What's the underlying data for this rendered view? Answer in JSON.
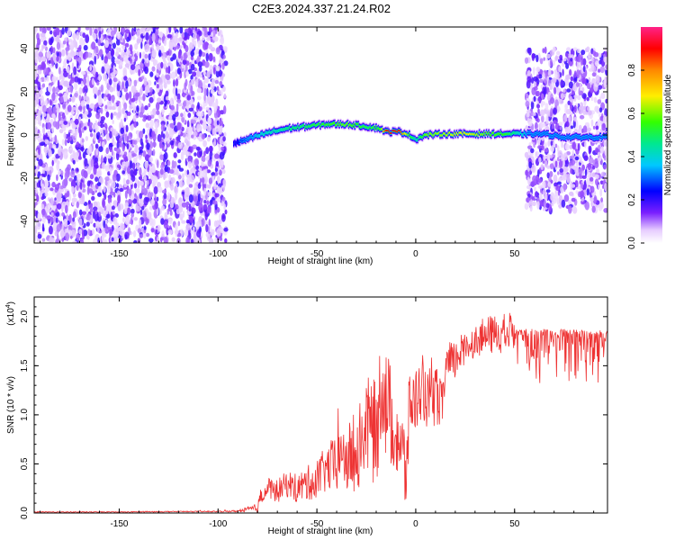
{
  "title": "C2E3.2024.337.21.24.R02",
  "chart_data": [
    {
      "type": "heatmap",
      "xlabel": "Height of straight line (km)",
      "ylabel": "Frequency (Hz)",
      "xlim": [
        -193,
        97
      ],
      "ylim": [
        -50,
        50
      ],
      "xticks": [
        -150,
        -100,
        -50,
        0,
        50
      ],
      "yticks": [
        -40,
        -20,
        0,
        20,
        40
      ],
      "colorbar": {
        "label": "Normalized spectral amplitude",
        "range": [
          0,
          1
        ],
        "ticks": [
          0.0,
          0.2,
          0.4,
          0.6,
          0.8
        ],
        "tick_labels": [
          "0.0",
          "0.2",
          "0.4",
          "0.6",
          "0.8"
        ]
      },
      "noise_regions": [
        {
          "x": [
            -193,
            -96
          ],
          "y": [
            -50,
            50
          ]
        },
        {
          "x": [
            56,
            97
          ],
          "y": [
            -35,
            40
          ]
        }
      ],
      "carrier_line": {
        "x": [
          -92,
          -85,
          -75,
          -65,
          -55,
          -45,
          -35,
          -25,
          -18,
          -15,
          -8,
          -4,
          0,
          5,
          15,
          25,
          35,
          45,
          57,
          65,
          75,
          85,
          97
        ],
        "y": [
          -4,
          -2,
          1,
          3,
          4,
          5,
          5,
          4,
          3,
          1.5,
          1.5,
          0.5,
          -2,
          0,
          0.5,
          0.5,
          0.5,
          0.5,
          0.5,
          0.5,
          -1,
          -1,
          -1
        ],
        "peak_amplitude": [
          0.2,
          0.3,
          0.4,
          0.45,
          0.5,
          0.55,
          0.6,
          0.5,
          0.55,
          0.9,
          0.9,
          0.6,
          0.4,
          0.6,
          0.65,
          0.7,
          0.6,
          0.55,
          0.3,
          0.3,
          0.3,
          0.3,
          0.3
        ]
      }
    },
    {
      "type": "line",
      "xlabel": "Height of straight line (km)",
      "ylabel": "SNR (10 * v/v)",
      "scale_label": "(x10",
      "scale_exponent": "4",
      "xlim": [
        -193,
        97
      ],
      "ylim": [
        0,
        2.2
      ],
      "xticks": [
        -150,
        -100,
        -50,
        0,
        50
      ],
      "yticks": [
        0.0,
        0.5,
        1.0,
        1.5,
        2.0
      ],
      "ytick_labels": [
        "0.0",
        "0.5",
        "1.0",
        "1.5",
        "2.0"
      ],
      "color": "#ee3333",
      "series": [
        {
          "x": [
            -193,
            -170,
            -150,
            -120,
            -100,
            -90,
            -80,
            -78,
            -75,
            -70,
            -65,
            -60,
            -55,
            -50,
            -45,
            -40,
            -35,
            -30,
            -25,
            -20,
            -17,
            -15,
            -13,
            -10,
            -7,
            -5,
            -3,
            0,
            3,
            5,
            8,
            10,
            13,
            15,
            20,
            25,
            30,
            35,
            40,
            50,
            55,
            60,
            70,
            80,
            90,
            97
          ],
          "y": [
            0.01,
            0.01,
            0.01,
            0.015,
            0.015,
            0.02,
            0.05,
            0.2,
            0.25,
            0.22,
            0.3,
            0.25,
            0.3,
            0.35,
            0.45,
            0.5,
            0.55,
            0.6,
            0.9,
            0.8,
            1.4,
            1.1,
            1.0,
            0.9,
            0.6,
            0.4,
            1.1,
            1.15,
            1.3,
            1.2,
            1.0,
            1.25,
            1.05,
            1.45,
            1.55,
            1.7,
            1.75,
            1.8,
            1.82,
            1.85,
            1.86,
            1.86,
            1.86,
            1.86,
            1.85,
            1.85
          ],
          "noise": [
            0.005,
            0.005,
            0.005,
            0.005,
            0.006,
            0.01,
            0.05,
            0.1,
            0.12,
            0.12,
            0.14,
            0.15,
            0.18,
            0.2,
            0.25,
            0.3,
            0.35,
            0.4,
            0.5,
            0.55,
            0.6,
            0.6,
            0.55,
            0.55,
            0.5,
            0.45,
            0.4,
            0.35,
            0.35,
            0.3,
            0.3,
            0.3,
            0.28,
            0.3,
            0.2,
            0.18,
            0.16,
            0.2,
            0.2,
            0.22,
            0.2,
            0.22,
            0.22,
            0.22,
            0.22,
            0.22
          ]
        }
      ]
    }
  ]
}
